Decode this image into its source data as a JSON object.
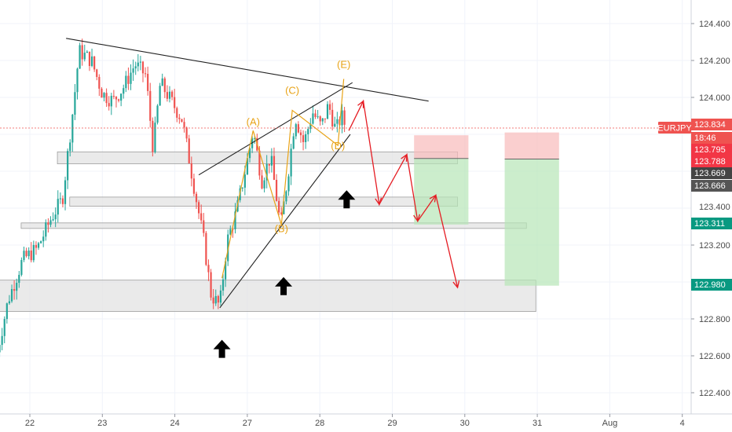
{
  "chart_data": {
    "type": "candlestick",
    "symbol": "EURJPY",
    "y_axis": {
      "ylim": [
        122.32,
        124.58
      ],
      "ticks": [
        124.4,
        124.2,
        124.0,
        123.2,
        122.8,
        122.6,
        122.4
      ],
      "tick_labels": [
        "124.400",
        "124.200",
        "124.000",
        "123.200",
        "122.800",
        "122.600",
        "122.400"
      ]
    },
    "x_axis": {
      "ticks": [
        0,
        1,
        2,
        3,
        4,
        5,
        6,
        7,
        8,
        9
      ],
      "tick_labels": [
        "22",
        "23",
        "24",
        "27",
        "28",
        "29",
        "30",
        "31",
        "Aug",
        "4"
      ]
    },
    "price_tags": [
      {
        "label": "EURJPY",
        "value": 123.834,
        "text": "123.834",
        "color": "#ef5350"
      },
      {
        "value": 123.811,
        "text": "18:46",
        "color": "#ef5350"
      },
      {
        "value": 123.795,
        "text": "123.795",
        "color": "#f23645"
      },
      {
        "value": 123.788,
        "text": "123.788",
        "color": "#f23645"
      },
      {
        "value": 123.669,
        "text": "123.669",
        "color": "#444444"
      },
      {
        "value": 123.666,
        "text": "123.666",
        "color": "#555555"
      },
      {
        "value": 123.4,
        "text": "123.400",
        "color": "none"
      },
      {
        "value": 123.311,
        "text": "123.311",
        "color": "#089981"
      },
      {
        "value": 122.98,
        "text": "122.980",
        "color": "#089981"
      }
    ],
    "wave_labels": [
      {
        "text": "(A)",
        "x": 3.08,
        "y": 123.85
      },
      {
        "text": "(B)",
        "x": 3.47,
        "y": 123.27
      },
      {
        "text": "(C)",
        "x": 3.62,
        "y": 124.02
      },
      {
        "text": "(D)",
        "x": 4.25,
        "y": 123.72
      },
      {
        "text": "(E)",
        "x": 4.33,
        "y": 124.16
      }
    ],
    "colors": {
      "up": "#26a69a",
      "down": "#ef5350",
      "wave": "#e8a317",
      "projection": "#e51c23",
      "zone": "#d9d9d9"
    }
  }
}
